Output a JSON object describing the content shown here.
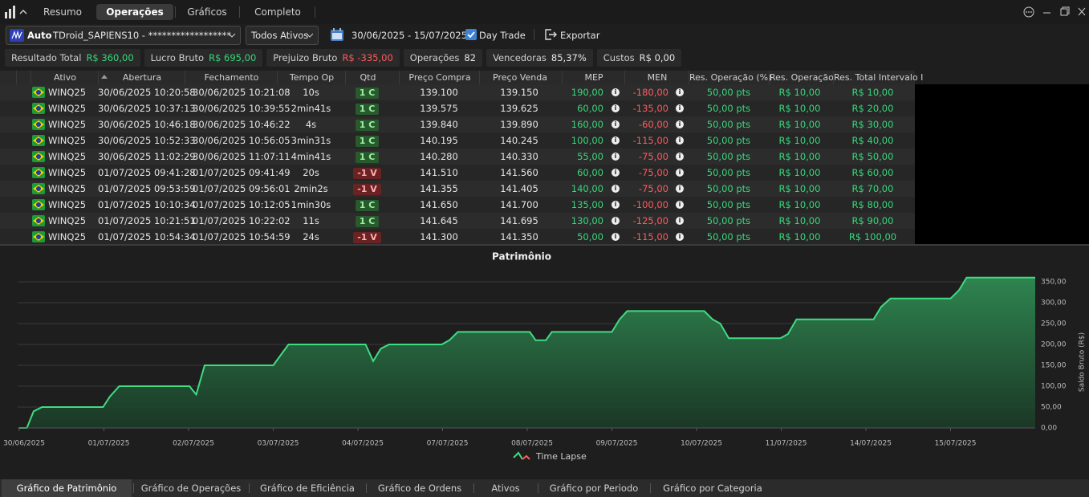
{
  "tabs": [
    "Resumo",
    "Operações",
    "Gráficos",
    "Completo"
  ],
  "toolbar": {
    "account": "Auto",
    "robot": "TDroid_SAPIENS10 - ******************",
    "filter": "Todos Ativos",
    "date_range": "30/06/2025 - 15/07/2025",
    "day_trade": "Day Trade",
    "export": "Exportar"
  },
  "summary": [
    {
      "label": "Resultado Total",
      "value": "R$ 360,00"
    },
    {
      "label": "Lucro Bruto",
      "value": "R$ 695,00"
    },
    {
      "label": "Prejuizo Bruto",
      "value": "R$ -335,00"
    },
    {
      "label": "Operações",
      "value": "82"
    },
    {
      "label": "Vencedoras",
      "value": "85,37%"
    },
    {
      "label": "Custos",
      "value": "R$ 0,00"
    }
  ],
  "table": {
    "columns": [
      "Ativo",
      "Abertura",
      "Fechamento",
      "Tempo Op",
      "Qtd",
      "Preço Compra",
      "Preço Venda",
      "MEP",
      "MEN",
      "Res. Operação (%)",
      "Res. Operação",
      "Res. Total Intervalo I"
    ],
    "rows": [
      [
        "WINQ25",
        "30/06/2025 10:20:58",
        "30/06/2025 10:21:08",
        "10s",
        "1 C",
        "139.100",
        "139.150",
        "190,00",
        "-180,00",
        "50,00 pts",
        "R$ 10,00",
        "R$ 10,00"
      ],
      [
        "WINQ25",
        "30/06/2025 10:37:13",
        "30/06/2025 10:39:55",
        "2min41s",
        "1 C",
        "139.575",
        "139.625",
        "60,00",
        "-135,00",
        "50,00 pts",
        "R$ 10,00",
        "R$ 20,00"
      ],
      [
        "WINQ25",
        "30/06/2025 10:46:18",
        "30/06/2025 10:46:22",
        "4s",
        "1 C",
        "139.840",
        "139.890",
        "160,00",
        "-60,00",
        "50,00 pts",
        "R$ 10,00",
        "R$ 30,00"
      ],
      [
        "WINQ25",
        "30/06/2025 10:52:33",
        "30/06/2025 10:56:05",
        "3min31s",
        "1 C",
        "140.195",
        "140.245",
        "100,00",
        "-115,00",
        "50,00 pts",
        "R$ 10,00",
        "R$ 40,00"
      ],
      [
        "WINQ25",
        "30/06/2025 11:02:29",
        "30/06/2025 11:07:11",
        "4min41s",
        "1 C",
        "140.280",
        "140.330",
        "55,00",
        "-75,00",
        "50,00 pts",
        "R$ 10,00",
        "R$ 50,00"
      ],
      [
        "WINQ25",
        "01/07/2025 09:41:28",
        "01/07/2025 09:41:49",
        "20s",
        "-1 V",
        "141.510",
        "141.560",
        "60,00",
        "-75,00",
        "50,00 pts",
        "R$ 10,00",
        "R$ 60,00"
      ],
      [
        "WINQ25",
        "01/07/2025 09:53:59",
        "01/07/2025 09:56:01",
        "2min2s",
        "-1 V",
        "141.355",
        "141.405",
        "140,00",
        "-75,00",
        "50,00 pts",
        "R$ 10,00",
        "R$ 70,00"
      ],
      [
        "WINQ25",
        "01/07/2025 10:10:34",
        "01/07/2025 10:12:05",
        "1min30s",
        "1 C",
        "141.650",
        "141.700",
        "135,00",
        "-100,00",
        "50,00 pts",
        "R$ 10,00",
        "R$ 80,00"
      ],
      [
        "WINQ25",
        "01/07/2025 10:21:51",
        "01/07/2025 10:22:02",
        "11s",
        "1 C",
        "141.645",
        "141.695",
        "130,00",
        "-125,00",
        "50,00 pts",
        "R$ 10,00",
        "R$ 90,00"
      ],
      [
        "WINQ25",
        "01/07/2025 10:54:34",
        "01/07/2025 10:54:59",
        "24s",
        "-1 V",
        "141.300",
        "141.350",
        "50,00",
        "-115,00",
        "50,00 pts",
        "R$ 10,00",
        "R$ 100,00"
      ]
    ]
  },
  "chart_data": {
    "type": "area",
    "title": "Patrimônio",
    "y_label": "Saldo Bruto (R$)",
    "x": [
      0,
      0.09,
      0.17,
      0.27,
      0.99,
      1.07,
      1.18,
      2.01,
      2.09,
      2.19,
      3.0,
      3.09,
      3.18,
      4.09,
      4.18,
      4.27,
      4.37,
      4.99,
      5.08,
      5.18,
      6.03,
      6.1,
      6.22,
      6.29,
      7.0,
      7.09,
      7.18,
      8.09,
      8.19,
      8.28,
      8.38,
      8.99,
      9.08,
      9.18,
      10.09,
      10.18,
      10.29,
      11.0,
      11.1,
      11.19,
      12.0
    ],
    "series": [
      {
        "name": "Time Lapse",
        "color": "#3fdc82",
        "values": [
          0,
          0,
          40,
          50,
          50,
          75,
          100,
          100,
          80,
          150,
          150,
          175,
          200,
          200,
          160,
          190,
          200,
          200,
          210,
          230,
          230,
          210,
          210,
          230,
          230,
          260,
          280,
          280,
          260,
          250,
          215,
          215,
          225,
          260,
          260,
          290,
          310,
          310,
          330,
          360,
          360
        ]
      }
    ],
    "xlim": [
      0,
      12
    ],
    "xticks": [
      {
        "value": 0,
        "label": "30/06/2025"
      },
      {
        "value": 1,
        "label": "01/07/2025"
      },
      {
        "value": 2,
        "label": "02/07/2025"
      },
      {
        "value": 3,
        "label": "03/07/2025"
      },
      {
        "value": 4,
        "label": "04/07/2025"
      },
      {
        "value": 5,
        "label": "07/07/2025"
      },
      {
        "value": 6,
        "label": "08/07/2025"
      },
      {
        "value": 7,
        "label": "09/07/2025"
      },
      {
        "value": 8,
        "label": "10/07/2025"
      },
      {
        "value": 9,
        "label": "11/07/2025"
      },
      {
        "value": 10,
        "label": "14/07/2025"
      },
      {
        "value": 11,
        "label": "15/07/2025"
      }
    ],
    "ylim": [
      0,
      375
    ],
    "yticks": [
      {
        "value": 0,
        "label": "0,00"
      },
      {
        "value": 50,
        "label": "50,00"
      },
      {
        "value": 100,
        "label": "100,00"
      },
      {
        "value": 150,
        "label": "150,00"
      },
      {
        "value": 200,
        "label": "200,00"
      },
      {
        "value": 250,
        "label": "250,00"
      },
      {
        "value": 300,
        "label": "300,00"
      },
      {
        "value": 350,
        "label": "350,00"
      }
    ],
    "grid": true
  },
  "bottom_tabs": [
    "Gráfico de Patrimônio",
    "Gráfico de Operações",
    "Gráfico de Eficiência",
    "Gráfico de Ordens",
    "Ativos",
    "Gráfico por Periodo",
    "Gráfico por Categoria"
  ]
}
